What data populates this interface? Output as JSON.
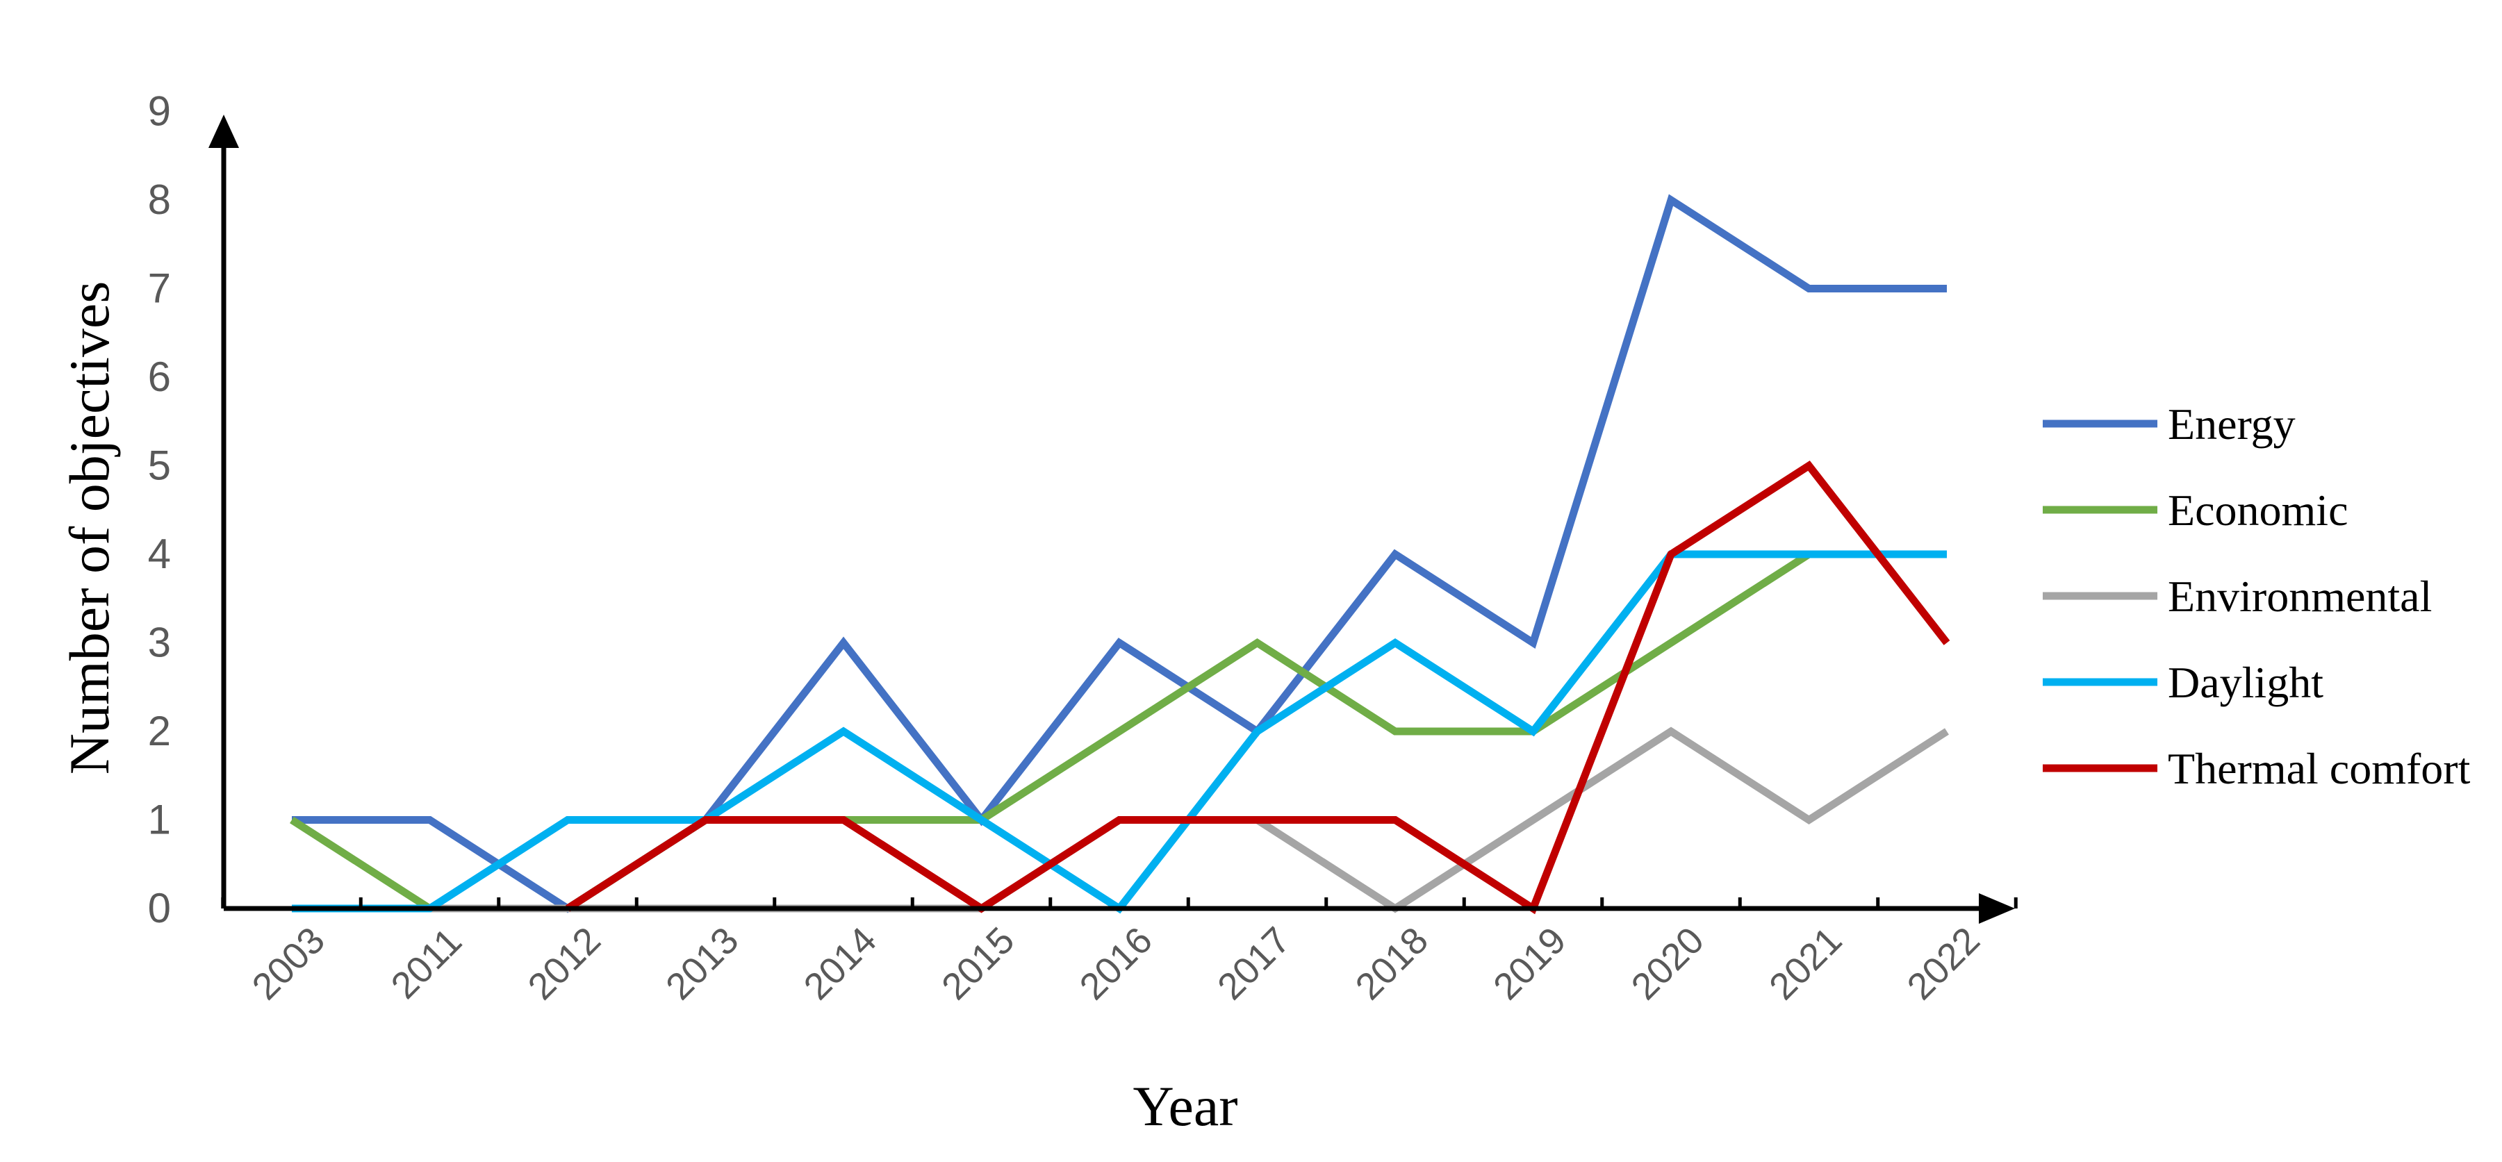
{
  "chart_data": {
    "type": "line",
    "xlabel": "Year",
    "ylabel": "Number of objectives",
    "categories": [
      "2003",
      "2011",
      "2012",
      "2013",
      "2014",
      "2015",
      "2016",
      "2017",
      "2018",
      "2019",
      "2020",
      "2021",
      "2022"
    ],
    "ylim": [
      0,
      9
    ],
    "yticks": [
      0,
      1,
      2,
      3,
      4,
      5,
      6,
      7,
      8,
      9
    ],
    "grid": false,
    "legend_position": "right",
    "series": [
      {
        "name": "Energy",
        "color": "#4472C4",
        "values": [
          1,
          1,
          0,
          1,
          3,
          1,
          3,
          2,
          4,
          3,
          8,
          7,
          7
        ]
      },
      {
        "name": "Economic",
        "color": "#70AD47",
        "values": [
          1,
          0,
          0,
          1,
          1,
          1,
          2,
          3,
          2,
          2,
          3,
          4,
          4
        ]
      },
      {
        "name": "Environmental",
        "color": "#A5A5A5",
        "values": [
          0,
          0,
          0,
          0,
          0,
          0,
          1,
          1,
          0,
          1,
          2,
          1,
          2
        ]
      },
      {
        "name": "Daylight",
        "color": "#00B0F0",
        "values": [
          0,
          0,
          1,
          1,
          2,
          1,
          0,
          2,
          3,
          2,
          4,
          4,
          4
        ]
      },
      {
        "name": "Thermal comfort",
        "color": "#C00000",
        "values": [
          null,
          null,
          0,
          1,
          1,
          0,
          1,
          1,
          1,
          0,
          4,
          5,
          3
        ]
      }
    ]
  }
}
